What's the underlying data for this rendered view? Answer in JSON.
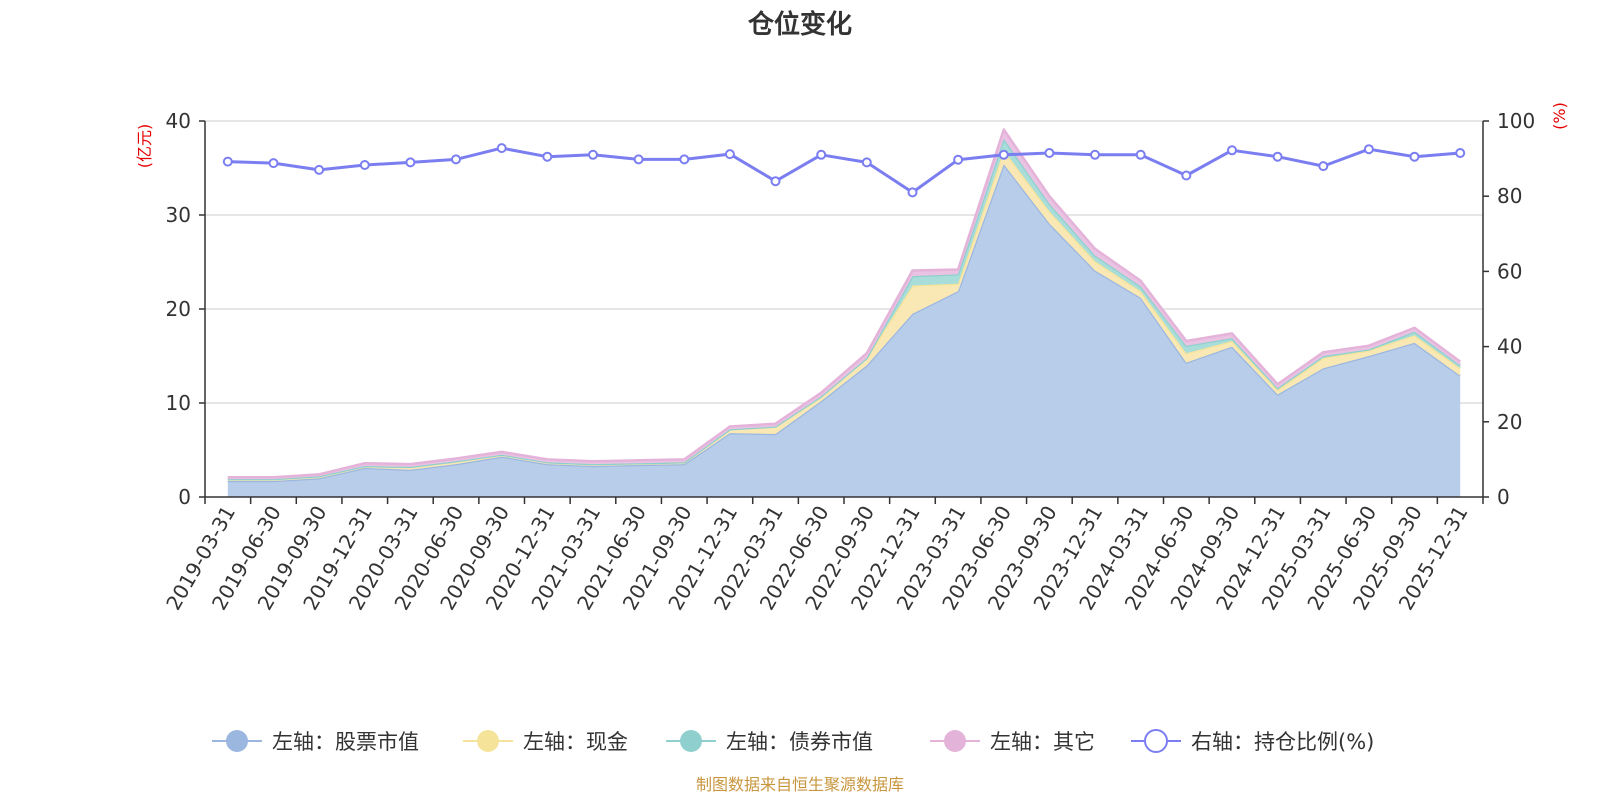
{
  "chart_data": {
    "type": "area",
    "title": "仓位变化",
    "left_axis_unit": "(亿元)",
    "right_axis_unit": "(%)",
    "left_ylim": [
      0,
      40
    ],
    "left_ticks": [
      "0",
      "10",
      "20",
      "30",
      "40"
    ],
    "right_ylim": [
      0,
      100
    ],
    "right_ticks": [
      "0",
      "20",
      "40",
      "60",
      "80",
      "100"
    ],
    "grid": true,
    "legend_position": "bottom",
    "categories": [
      "2019-03-31",
      "2019-06-30",
      "2019-09-30",
      "2019-12-31",
      "2020-03-31",
      "2020-06-30",
      "2020-09-30",
      "2020-12-31",
      "2021-03-31",
      "2021-06-30",
      "2021-09-30",
      "2021-12-31",
      "2022-03-31",
      "2022-06-30",
      "2022-09-30",
      "2022-12-31",
      "2023-03-31",
      "2023-06-30",
      "2023-09-30",
      "2023-12-31",
      "2024-03-31",
      "2024-06-30",
      "2024-09-30",
      "2024-12-31",
      "2025-03-31",
      "2025-06-30",
      "2025-09-30",
      "2025-12-31"
    ],
    "series": [
      {
        "name": "左轴：股票市值",
        "axis": "left",
        "stacked": true,
        "color": "#9bb7e0",
        "fill": "#b8cdea",
        "values": [
          1.7,
          1.7,
          2.0,
          3.1,
          2.9,
          3.5,
          4.3,
          3.5,
          3.3,
          3.4,
          3.5,
          6.8,
          6.7,
          10.2,
          14.0,
          19.5,
          21.9,
          35.4,
          29.1,
          24.1,
          21.2,
          14.3,
          16.0,
          10.9,
          13.7,
          15.0,
          16.4,
          12.9
        ]
      },
      {
        "name": "左轴：现金",
        "axis": "left",
        "stacked": true,
        "color": "#f5e39a",
        "fill": "#fae8b4",
        "values": [
          0.2,
          0.2,
          0.2,
          0.2,
          0.3,
          0.3,
          0.2,
          0.2,
          0.2,
          0.2,
          0.2,
          0.4,
          0.8,
          0.5,
          0.8,
          3.0,
          0.8,
          1.5,
          1.3,
          1.0,
          0.7,
          1.0,
          0.6,
          0.5,
          1.1,
          0.6,
          0.8,
          0.8
        ]
      },
      {
        "name": "左轴：债券市值",
        "axis": "left",
        "stacked": true,
        "color": "#8fd0cf",
        "fill": "#a9ddd9",
        "values": [
          0,
          0,
          0,
          0,
          0,
          0,
          0,
          0,
          0,
          0,
          0,
          0,
          0,
          0,
          0,
          1.0,
          1.0,
          1.2,
          0.8,
          0.6,
          0.5,
          0.8,
          0.3,
          0.2,
          0.2,
          0.1,
          0.4,
          0.3
        ]
      },
      {
        "name": "左轴：其它",
        "axis": "left",
        "stacked": true,
        "color": "#e4b3d9",
        "fill": "#eac2e2",
        "values": [
          0.2,
          0.2,
          0.2,
          0.3,
          0.3,
          0.3,
          0.3,
          0.3,
          0.3,
          0.3,
          0.3,
          0.3,
          0.3,
          0.4,
          0.5,
          0.6,
          0.5,
          1.0,
          0.8,
          0.7,
          0.6,
          0.5,
          0.5,
          0.4,
          0.4,
          0.4,
          0.4,
          0.4
        ]
      },
      {
        "name": "右轴：持仓比例(%)",
        "axis": "right",
        "color": "#7b7ef0",
        "values": [
          89.2,
          88.8,
          87.0,
          88.3,
          89.0,
          89.8,
          92.8,
          90.5,
          91.0,
          89.8,
          89.8,
          91.2,
          84.0,
          91.0,
          89.0,
          81.0,
          89.7,
          91.0,
          91.5,
          91.0,
          91.0,
          85.5,
          92.2,
          90.5,
          88.0,
          92.5,
          90.5,
          91.5
        ]
      }
    ],
    "source_note": "制图数据来自恒生聚源数据库"
  }
}
